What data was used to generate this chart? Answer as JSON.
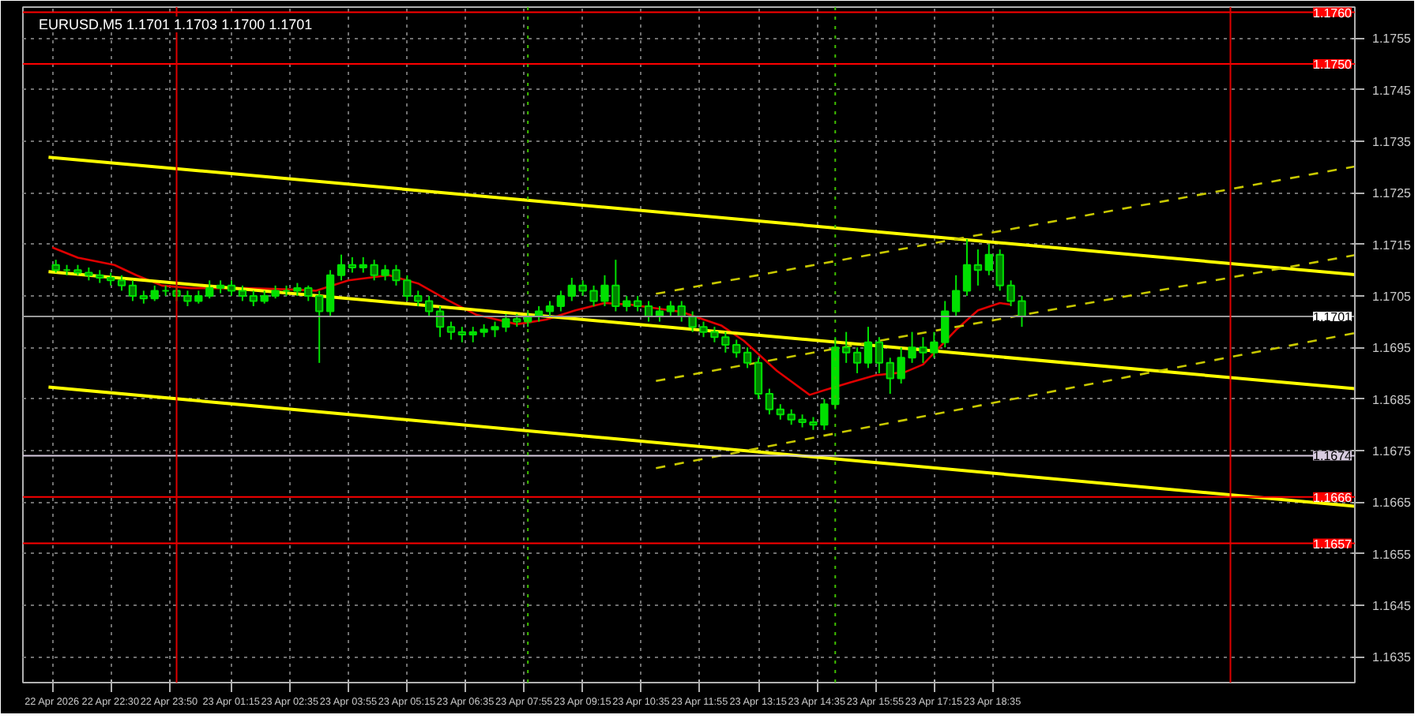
{
  "chart_data": {
    "type": "candlestick",
    "title": "EURUSD,M5  1.1701 1.1703 1.1700 1.1701",
    "color": "#00e000",
    "grid": true,
    "xlim": [
      "2026-04-22T20:30",
      "2026-04-24T02:50"
    ],
    "ylim": [
      1.163,
      1.1761
    ],
    "xticks": [
      {
        "value": "2026-04-22T21:10",
        "label": "22 Apr 2026"
      },
      {
        "value": "2026-04-22T22:30",
        "label": "22 Apr 22:30"
      },
      {
        "value": "2026-04-22T23:50",
        "label": "22 Apr 23:50"
      },
      {
        "value": "2026-04-23T01:15",
        "label": "23 Apr 01:15"
      },
      {
        "value": "2026-04-23T02:35",
        "label": "23 Apr 02:35"
      },
      {
        "value": "2026-04-23T03:55",
        "label": "23 Apr 03:55"
      },
      {
        "value": "2026-04-23T05:15",
        "label": "23 Apr 05:15"
      },
      {
        "value": "2026-04-23T06:35",
        "label": "23 Apr 06:35"
      },
      {
        "value": "2026-04-23T07:55",
        "label": "23 Apr 07:55"
      },
      {
        "value": "2026-04-23T09:15",
        "label": "23 Apr 09:15"
      },
      {
        "value": "2026-04-23T10:35",
        "label": "23 Apr 10:35"
      },
      {
        "value": "2026-04-23T11:55",
        "label": "23 Apr 11:55"
      },
      {
        "value": "2026-04-23T13:15",
        "label": "23 Apr 13:15"
      },
      {
        "value": "2026-04-23T14:35",
        "label": "23 Apr 14:35"
      },
      {
        "value": "2026-04-23T15:55",
        "label": "23 Apr 15:55"
      },
      {
        "value": "2026-04-23T17:15",
        "label": "23 Apr 17:15"
      },
      {
        "value": "2026-04-23T18:35",
        "label": "23 Apr 18:35"
      }
    ],
    "yticks": [
      1.1635,
      1.1645,
      1.1655,
      1.1665,
      1.1675,
      1.1685,
      1.1695,
      1.1705,
      1.1715,
      1.1725,
      1.1735,
      1.1745,
      1.1755
    ],
    "x": [
      "2026-04-22T21:15",
      "2026-04-22T21:30",
      "2026-04-22T21:45",
      "2026-04-22T22:00",
      "2026-04-22T22:15",
      "2026-04-22T22:30",
      "2026-04-22T22:45",
      "2026-04-22T23:00",
      "2026-04-22T23:15",
      "2026-04-22T23:30",
      "2026-04-22T23:45",
      "2026-04-23T00:00",
      "2026-04-23T00:15",
      "2026-04-23T00:30",
      "2026-04-23T00:45",
      "2026-04-23T01:00",
      "2026-04-23T01:15",
      "2026-04-23T01:30",
      "2026-04-23T01:45",
      "2026-04-23T02:00",
      "2026-04-23T02:15",
      "2026-04-23T02:30",
      "2026-04-23T02:45",
      "2026-04-23T03:00",
      "2026-04-23T03:15",
      "2026-04-23T03:30",
      "2026-04-23T03:45",
      "2026-04-23T04:00",
      "2026-04-23T04:15",
      "2026-04-23T04:30",
      "2026-04-23T04:45",
      "2026-04-23T05:00",
      "2026-04-23T05:15",
      "2026-04-23T05:30",
      "2026-04-23T05:45",
      "2026-04-23T06:00",
      "2026-04-23T06:15",
      "2026-04-23T06:30",
      "2026-04-23T06:45",
      "2026-04-23T07:00",
      "2026-04-23T07:15",
      "2026-04-23T07:30",
      "2026-04-23T07:45",
      "2026-04-23T08:00",
      "2026-04-23T08:15",
      "2026-04-23T08:30",
      "2026-04-23T08:45",
      "2026-04-23T09:00",
      "2026-04-23T09:15",
      "2026-04-23T09:30",
      "2026-04-23T09:45",
      "2026-04-23T10:00",
      "2026-04-23T10:15",
      "2026-04-23T10:30",
      "2026-04-23T10:45",
      "2026-04-23T11:00",
      "2026-04-23T11:15",
      "2026-04-23T11:30",
      "2026-04-23T11:45",
      "2026-04-23T12:00",
      "2026-04-23T12:15",
      "2026-04-23T12:30",
      "2026-04-23T12:45",
      "2026-04-23T13:00",
      "2026-04-23T13:15",
      "2026-04-23T13:30",
      "2026-04-23T13:45",
      "2026-04-23T14:00",
      "2026-04-23T14:15",
      "2026-04-23T14:30",
      "2026-04-23T14:45",
      "2026-04-23T15:00",
      "2026-04-23T15:15",
      "2026-04-23T15:30",
      "2026-04-23T15:45",
      "2026-04-23T16:00",
      "2026-04-23T16:15",
      "2026-04-23T16:30",
      "2026-04-23T16:45",
      "2026-04-23T17:00",
      "2026-04-23T17:15",
      "2026-04-23T17:30",
      "2026-04-23T17:45",
      "2026-04-23T18:00",
      "2026-04-23T18:15",
      "2026-04-23T18:30",
      "2026-04-23T18:45",
      "2026-04-23T19:00",
      "2026-04-23T19:15"
    ],
    "ohlc": [
      [
        1.1711,
        1.1712,
        1.17095,
        1.171
      ],
      [
        1.171,
        1.1711,
        1.1709,
        1.171
      ],
      [
        1.171,
        1.1711,
        1.1709,
        1.17095
      ],
      [
        1.17095,
        1.17105,
        1.1708,
        1.1709
      ],
      [
        1.1709,
        1.171,
        1.17075,
        1.17085
      ],
      [
        1.17085,
        1.17095,
        1.1707,
        1.1708
      ],
      [
        1.1708,
        1.1709,
        1.1706,
        1.1707
      ],
      [
        1.1707,
        1.1708,
        1.1704,
        1.1705
      ],
      [
        1.1705,
        1.1706,
        1.17035,
        1.17045
      ],
      [
        1.17045,
        1.1707,
        1.1704,
        1.1706
      ],
      [
        1.1706,
        1.1707,
        1.1705,
        1.1706
      ],
      [
        1.1706,
        1.1707,
        1.1704,
        1.1705
      ],
      [
        1.1705,
        1.1706,
        1.1703,
        1.1704
      ],
      [
        1.1704,
        1.1706,
        1.17035,
        1.1705
      ],
      [
        1.1705,
        1.1708,
        1.17045,
        1.17065
      ],
      [
        1.17065,
        1.1708,
        1.17055,
        1.1707
      ],
      [
        1.1707,
        1.1708,
        1.1705,
        1.1706
      ],
      [
        1.1706,
        1.1707,
        1.1704,
        1.1705
      ],
      [
        1.1705,
        1.1706,
        1.1703,
        1.1704
      ],
      [
        1.1704,
        1.1706,
        1.17035,
        1.1705
      ],
      [
        1.1705,
        1.1707,
        1.17045,
        1.1706
      ],
      [
        1.1706,
        1.1707,
        1.1705,
        1.1706
      ],
      [
        1.1706,
        1.17075,
        1.1705,
        1.17065
      ],
      [
        1.17065,
        1.1707,
        1.1704,
        1.1705
      ],
      [
        1.1705,
        1.1706,
        1.1692,
        1.1702
      ],
      [
        1.1702,
        1.171,
        1.1701,
        1.1709
      ],
      [
        1.1709,
        1.1713,
        1.1708,
        1.1711
      ],
      [
        1.1711,
        1.17125,
        1.17095,
        1.17105
      ],
      [
        1.17105,
        1.17125,
        1.17095,
        1.1711
      ],
      [
        1.1711,
        1.1712,
        1.1708,
        1.1709
      ],
      [
        1.1709,
        1.1711,
        1.1708,
        1.171
      ],
      [
        1.171,
        1.1711,
        1.1707,
        1.1708
      ],
      [
        1.1708,
        1.1709,
        1.1704,
        1.1705
      ],
      [
        1.1705,
        1.1706,
        1.1703,
        1.1704
      ],
      [
        1.1704,
        1.1705,
        1.1701,
        1.1702
      ],
      [
        1.1702,
        1.1703,
        1.1697,
        1.1699
      ],
      [
        1.1699,
        1.17,
        1.16965,
        1.1698
      ],
      [
        1.1698,
        1.1699,
        1.1696,
        1.16975
      ],
      [
        1.16975,
        1.1699,
        1.1696,
        1.1698
      ],
      [
        1.1698,
        1.16995,
        1.1697,
        1.16985
      ],
      [
        1.16985,
        1.17,
        1.1697,
        1.1699
      ],
      [
        1.1699,
        1.17015,
        1.1698,
        1.17005
      ],
      [
        1.17005,
        1.17015,
        1.1699,
        1.17
      ],
      [
        1.17,
        1.1702,
        1.1699,
        1.1701
      ],
      [
        1.1701,
        1.1703,
        1.17,
        1.1702
      ],
      [
        1.1702,
        1.1704,
        1.1701,
        1.1703
      ],
      [
        1.1703,
        1.1706,
        1.1702,
        1.1705
      ],
      [
        1.1705,
        1.17085,
        1.1704,
        1.1707
      ],
      [
        1.1707,
        1.1708,
        1.1705,
        1.1706
      ],
      [
        1.1706,
        1.1707,
        1.1703,
        1.1704
      ],
      [
        1.1704,
        1.1709,
        1.1703,
        1.1707
      ],
      [
        1.1707,
        1.1712,
        1.1702,
        1.1703
      ],
      [
        1.1703,
        1.1705,
        1.1702,
        1.1704
      ],
      [
        1.1704,
        1.1705,
        1.1702,
        1.1703
      ],
      [
        1.1703,
        1.1704,
        1.17,
        1.1701
      ],
      [
        1.1701,
        1.1703,
        1.17,
        1.1702
      ],
      [
        1.1702,
        1.1704,
        1.1701,
        1.1703
      ],
      [
        1.1703,
        1.1704,
        1.17,
        1.1701
      ],
      [
        1.1701,
        1.1702,
        1.1698,
        1.1699
      ],
      [
        1.1699,
        1.17,
        1.1697,
        1.1698
      ],
      [
        1.1698,
        1.1699,
        1.1696,
        1.1697
      ],
      [
        1.1697,
        1.1698,
        1.1694,
        1.16955
      ],
      [
        1.16955,
        1.16965,
        1.1693,
        1.1694
      ],
      [
        1.1694,
        1.1695,
        1.1691,
        1.1692
      ],
      [
        1.1692,
        1.1693,
        1.1685,
        1.1686
      ],
      [
        1.1686,
        1.1687,
        1.1682,
        1.1683
      ],
      [
        1.1683,
        1.1684,
        1.1681,
        1.1682
      ],
      [
        1.1682,
        1.1683,
        1.168,
        1.1681
      ],
      [
        1.1681,
        1.1682,
        1.16795,
        1.16805
      ],
      [
        1.16805,
        1.16815,
        1.1679,
        1.168
      ],
      [
        1.168,
        1.1685,
        1.1679,
        1.1684
      ],
      [
        1.1684,
        1.1697,
        1.1683,
        1.1695
      ],
      [
        1.1695,
        1.1698,
        1.1692,
        1.1694
      ],
      [
        1.1694,
        1.1695,
        1.169,
        1.1692
      ],
      [
        1.1692,
        1.1699,
        1.1691,
        1.1696
      ],
      [
        1.1696,
        1.1697,
        1.169,
        1.1692
      ],
      [
        1.1692,
        1.1693,
        1.1686,
        1.1689
      ],
      [
        1.1689,
        1.1695,
        1.1688,
        1.1693
      ],
      [
        1.1693,
        1.1698,
        1.1692,
        1.1695
      ],
      [
        1.1695,
        1.1697,
        1.1692,
        1.1694
      ],
      [
        1.1694,
        1.1698,
        1.1693,
        1.1696
      ],
      [
        1.1696,
        1.1704,
        1.1695,
        1.1702
      ],
      [
        1.1702,
        1.1709,
        1.1701,
        1.1706
      ],
      [
        1.1706,
        1.1716,
        1.1705,
        1.1711
      ],
      [
        1.1711,
        1.1714,
        1.1707,
        1.171
      ],
      [
        1.171,
        1.1715,
        1.1709,
        1.1713
      ],
      [
        1.1713,
        1.1714,
        1.1706,
        1.1707
      ],
      [
        1.1707,
        1.1708,
        1.1703,
        1.1704
      ],
      [
        1.1704,
        1.1705,
        1.1699,
        1.1701
      ]
    ],
    "series": [
      {
        "type": "line",
        "color": "#e00000",
        "line_style": "solid",
        "x": [
          "2026-04-22T21:10",
          "2026-04-22T21:45",
          "2026-04-22T22:35",
          "2026-04-22T23:05",
          "2026-04-22T23:40",
          "2026-04-23T00:20",
          "2026-04-23T01:35",
          "2026-04-23T02:45",
          "2026-04-23T03:10",
          "2026-04-23T03:55",
          "2026-04-23T04:50",
          "2026-04-23T05:30",
          "2026-04-23T06:10",
          "2026-04-23T06:50",
          "2026-04-23T07:45",
          "2026-04-23T08:25",
          "2026-04-23T09:05",
          "2026-04-23T09:45",
          "2026-04-23T10:20",
          "2026-04-23T11:30",
          "2026-04-23T12:25",
          "2026-04-23T12:55",
          "2026-04-23T13:40",
          "2026-04-23T14:25",
          "2026-04-23T14:45",
          "2026-04-23T15:20",
          "2026-04-23T15:55",
          "2026-04-23T16:35",
          "2026-04-23T17:00",
          "2026-04-23T17:45",
          "2026-04-23T18:15",
          "2026-04-23T18:45",
          "2026-04-23T19:00"
        ],
        "values": [
          1.17144,
          1.17124,
          1.1711,
          1.1709,
          1.1707,
          1.17065,
          1.17065,
          1.17062,
          1.1706,
          1.1708,
          1.1709,
          1.17074,
          1.17042,
          1.17013,
          1.16995,
          1.17004,
          1.17022,
          1.17036,
          1.17033,
          1.17019,
          1.16992,
          1.16963,
          1.16905,
          1.16858,
          1.16867,
          1.16882,
          1.16896,
          1.16902,
          1.16917,
          1.16984,
          1.17022,
          1.17036,
          1.17033
        ]
      },
      {
        "type": "line",
        "color": "#ffff00",
        "line_style": "solid",
        "x": [
          "2026-04-22T21:05",
          "2026-04-24T02:50"
        ],
        "values": [
          1.17319,
          1.17091
        ]
      },
      {
        "type": "line",
        "color": "#ffff00",
        "line_style": "solid",
        "x": [
          "2026-04-22T21:05",
          "2026-04-24T02:50"
        ],
        "values": [
          1.17097,
          1.1687
        ]
      },
      {
        "type": "line",
        "color": "#ffff00",
        "line_style": "solid",
        "x": [
          "2026-04-22T21:05",
          "2026-04-24T02:50"
        ],
        "values": [
          1.16873,
          1.16642
        ]
      },
      {
        "type": "line",
        "color": "#c8c800",
        "line_style": "dashed",
        "x": [
          "2026-04-23T10:55",
          "2026-04-24T02:50"
        ],
        "values": [
          1.17054,
          1.17301
        ]
      },
      {
        "type": "line",
        "color": "#c8c800",
        "line_style": "dashed",
        "x": [
          "2026-04-23T10:55",
          "2026-04-24T02:50"
        ],
        "values": [
          1.16885,
          1.17129
        ]
      },
      {
        "type": "line",
        "color": "#c8c800",
        "line_style": "dashed",
        "x": [
          "2026-04-23T10:55",
          "2026-04-24T02:50"
        ],
        "values": [
          1.16716,
          1.16978
        ]
      }
    ],
    "ref_lines": [
      {
        "axis": "y",
        "value": 1.176,
        "label": "1.1760",
        "color": "#ff0000",
        "line_style": "solid"
      },
      {
        "axis": "y",
        "value": 1.175,
        "label": "1.1750",
        "color": "#ff0000",
        "line_style": "solid"
      },
      {
        "axis": "y",
        "value": 1.1701,
        "label": "1.1701",
        "color": "#9a9a9a",
        "line_style": "solid"
      },
      {
        "axis": "y",
        "value": 1.1674,
        "label": "1.1674",
        "color": "#d8cce0",
        "line_style": "solid"
      },
      {
        "axis": "y",
        "value": 1.1666,
        "label": "1.1666",
        "color": "#ff0000",
        "line_style": "solid"
      },
      {
        "axis": "y",
        "value": 1.1657,
        "label": "1.1657",
        "color": "#ff0000",
        "line_style": "solid"
      },
      {
        "axis": "x",
        "value": "2026-04-23T00:00",
        "color": "#e00000",
        "line_style": "solid"
      },
      {
        "axis": "x",
        "value": "2026-04-24T00:00",
        "color": "#e00000",
        "line_style": "solid"
      },
      {
        "axis": "x",
        "value": "2026-04-23T08:00",
        "color": "#40c000",
        "line_style": "dotted"
      },
      {
        "axis": "x",
        "value": "2026-04-23T15:00",
        "color": "#40c000",
        "line_style": "dotted"
      }
    ]
  }
}
